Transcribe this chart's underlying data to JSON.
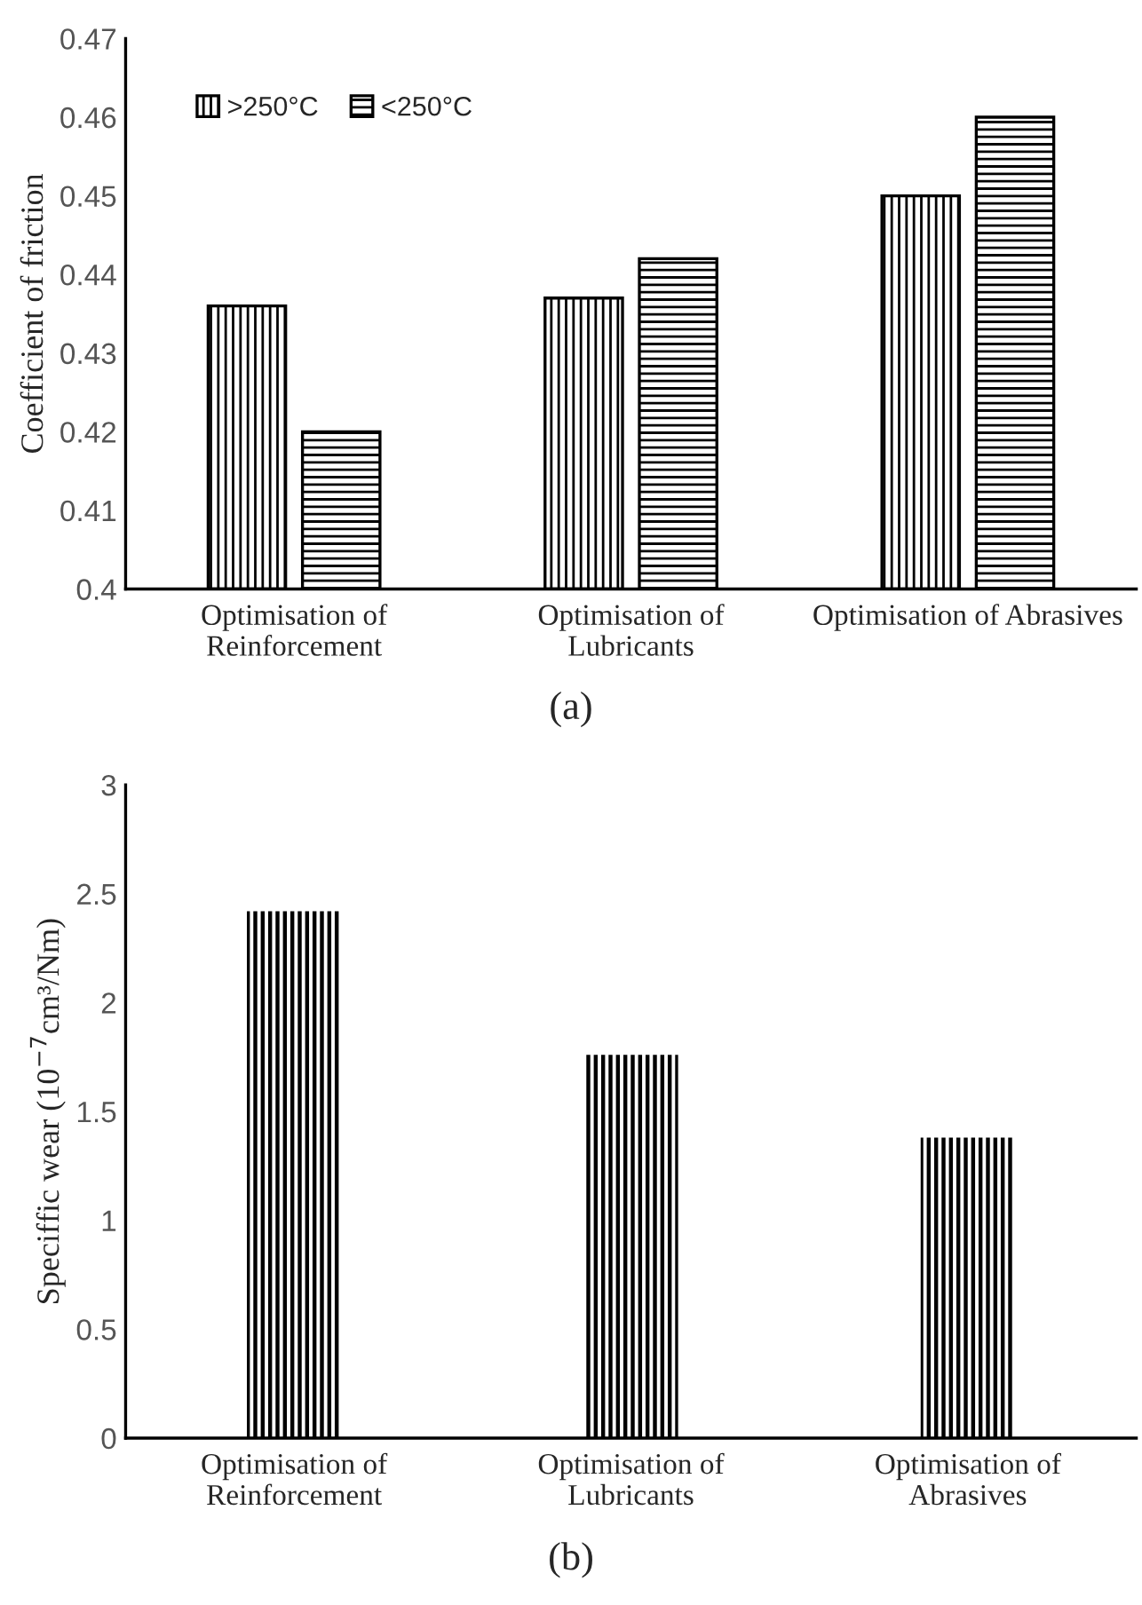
{
  "chart_data": [
    {
      "type": "bar",
      "ylabel": "Coefficient of friction",
      "categories": [
        "Optimisation of\nReinforcement",
        "Optimisation of\nLubricants",
        "Optimisation of Abrasives"
      ],
      "series": [
        {
          "name": ">250°C",
          "color": "#000000",
          "values": [
            0.436,
            0.437,
            0.45
          ]
        },
        {
          "name": "<250°C",
          "color": "#000000",
          "values": [
            0.42,
            0.442,
            0.46
          ]
        }
      ],
      "ylim": [
        0.4,
        0.47
      ],
      "yticks": [
        {
          "value": 0.4,
          "label": "0.4"
        },
        {
          "value": 0.41,
          "label": "0.41"
        },
        {
          "value": 0.42,
          "label": "0.42"
        },
        {
          "value": 0.43,
          "label": "0.43"
        },
        {
          "value": 0.44,
          "label": "0.44"
        },
        {
          "value": 0.45,
          "label": "0.45"
        },
        {
          "value": 0.46,
          "label": "0.46"
        },
        {
          "value": 0.47,
          "label": "0.47"
        }
      ],
      "grid": false,
      "legend": "top left",
      "annotations": [
        "(a)"
      ]
    },
    {
      "type": "bar",
      "ylabel": "Speciffic wear (10$^{−7}$cm³/Nm)",
      "categories": [
        "Optimisation of\nReinforcement",
        "Optimisation of\nLubricants",
        "Optimisation of\nAbrasives"
      ],
      "values": [
        2.42,
        1.76,
        1.38
      ],
      "color": "#000000",
      "ylim": [
        0,
        3
      ],
      "yticks": [
        0,
        {
          "value": 0.5,
          "label": "0.5"
        },
        1,
        {
          "value": 1.5,
          "label": "1.5"
        },
        2,
        {
          "value": 2.5,
          "label": "2.5"
        },
        3
      ],
      "grid": false,
      "annotations": [
        "(b)"
      ]
    }
  ]
}
